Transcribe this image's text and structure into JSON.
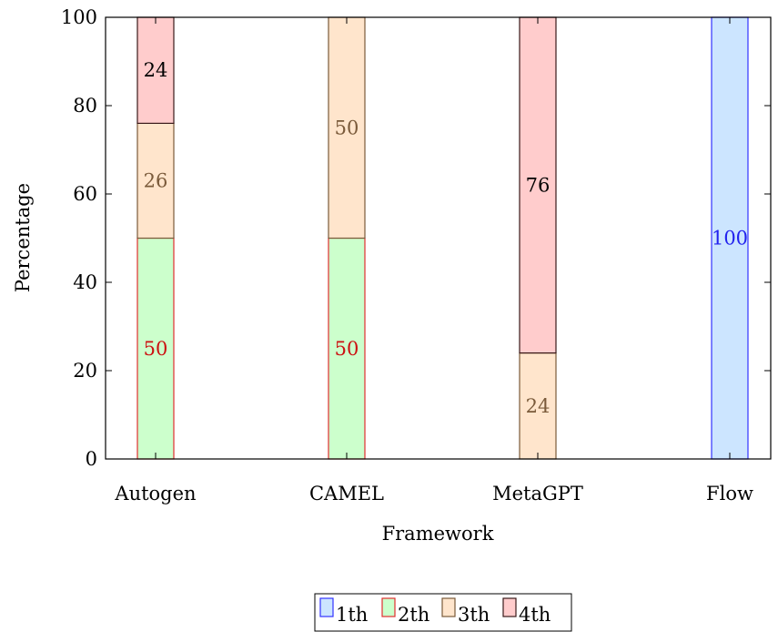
{
  "chart_data": {
    "type": "bar",
    "stacked": true,
    "categories": [
      "Autogen",
      "CAMEL",
      "MetaGPT",
      "Flow"
    ],
    "series": [
      {
        "name": "1th",
        "values": [
          0,
          0,
          0,
          100
        ],
        "fill": "#cce5ff",
        "stroke": "#3333ff",
        "label_color": "#2222ee"
      },
      {
        "name": "2th",
        "values": [
          50,
          50,
          0,
          0
        ],
        "fill": "#ccffcc",
        "stroke": "#e03030",
        "label_color": "#cc1111"
      },
      {
        "name": "3th",
        "values": [
          26,
          50,
          24,
          0
        ],
        "fill": "#ffe5cc",
        "stroke": "#7a5a3a",
        "label_color": "#7a5a3a"
      },
      {
        "name": "4th",
        "values": [
          24,
          0,
          76,
          0
        ],
        "fill": "#ffcccc",
        "stroke": "#3a1a1a",
        "label_color": "#000000"
      }
    ],
    "xlabel": "Framework",
    "ylabel": "Percentage",
    "ylim": [
      0,
      100
    ],
    "yticks": [
      0,
      20,
      40,
      60,
      80,
      100
    ],
    "grid": false,
    "legend_position": "bottom-center"
  }
}
